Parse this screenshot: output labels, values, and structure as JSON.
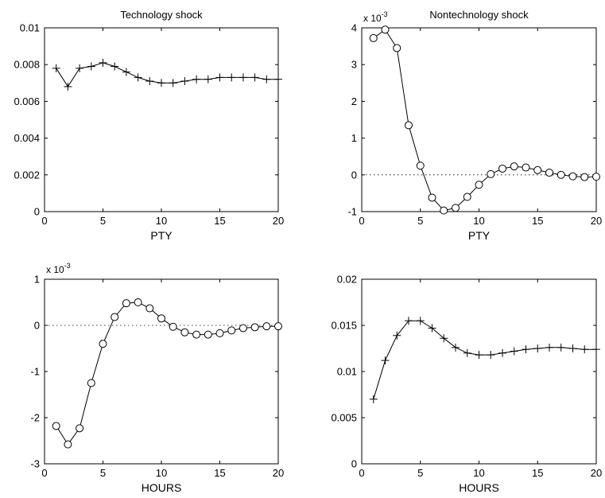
{
  "chart_data": [
    {
      "type": "line",
      "title": "Technology shock",
      "xlabel": "PTY",
      "ylabel": "",
      "multiplier": "",
      "xlim": [
        0,
        20
      ],
      "ylim": [
        0,
        0.01
      ],
      "xticks": [
        "0",
        "5",
        "10",
        "15",
        "20"
      ],
      "yticks": [
        "0",
        "0.002",
        "0.004",
        "0.006",
        "0.008",
        "0.01"
      ],
      "marker": "plus",
      "zero_line": false,
      "grid": false,
      "x": [
        1,
        2,
        3,
        4,
        5,
        6,
        7,
        8,
        9,
        10,
        11,
        12,
        13,
        14,
        15,
        16,
        17,
        18,
        19,
        20
      ],
      "values": [
        0.0078,
        0.0068,
        0.0078,
        0.0079,
        0.0081,
        0.0079,
        0.0076,
        0.0073,
        0.0071,
        0.007,
        0.007,
        0.0071,
        0.0072,
        0.0072,
        0.0073,
        0.0073,
        0.0073,
        0.0073,
        0.0072,
        0.0072
      ]
    },
    {
      "type": "line",
      "title": "Nontechnology shock",
      "xlabel": "PTY",
      "ylabel": "",
      "multiplier": "x 10",
      "multiplier_exp": "-3",
      "xlim": [
        0,
        20
      ],
      "ylim": [
        -1,
        4
      ],
      "xticks": [
        "0",
        "5",
        "10",
        "15",
        "20"
      ],
      "yticks": [
        "-1",
        "0",
        "1",
        "2",
        "3",
        "4"
      ],
      "marker": "circle",
      "zero_line": true,
      "grid": false,
      "x": [
        1,
        2,
        3,
        4,
        5,
        6,
        7,
        8,
        9,
        10,
        11,
        12,
        13,
        14,
        15,
        16,
        17,
        18,
        19,
        20
      ],
      "values": [
        3.72,
        3.95,
        3.45,
        1.35,
        0.25,
        -0.62,
        -0.97,
        -0.9,
        -0.6,
        -0.27,
        0.02,
        0.17,
        0.23,
        0.2,
        0.13,
        0.06,
        0.0,
        -0.04,
        -0.06,
        -0.05
      ]
    },
    {
      "type": "line",
      "title": "",
      "xlabel": "HOURS",
      "ylabel": "",
      "multiplier": "x 10",
      "multiplier_exp": "-3",
      "xlim": [
        0,
        20
      ],
      "ylim": [
        -3,
        1
      ],
      "xticks": [
        "0",
        "5",
        "10",
        "15",
        "20"
      ],
      "yticks": [
        "-3",
        "-2",
        "-1",
        "0",
        "1"
      ],
      "marker": "circle",
      "zero_line": true,
      "grid": false,
      "x": [
        1,
        2,
        3,
        4,
        5,
        6,
        7,
        8,
        9,
        10,
        11,
        12,
        13,
        14,
        15,
        16,
        17,
        18,
        19,
        20
      ],
      "values": [
        -2.18,
        -2.58,
        -2.23,
        -1.25,
        -0.4,
        0.18,
        0.48,
        0.5,
        0.37,
        0.15,
        -0.03,
        -0.15,
        -0.2,
        -0.2,
        -0.17,
        -0.11,
        -0.06,
        -0.04,
        -0.02,
        -0.02
      ]
    },
    {
      "type": "line",
      "title": "",
      "xlabel": "HOURS",
      "ylabel": "",
      "multiplier": "",
      "xlim": [
        0,
        20
      ],
      "ylim": [
        0,
        0.02
      ],
      "xticks": [
        "0",
        "5",
        "10",
        "15",
        "20"
      ],
      "yticks": [
        "0",
        "0.005",
        "0.01",
        "0.015",
        "0.02"
      ],
      "marker": "plus",
      "zero_line": false,
      "grid": false,
      "x": [
        1,
        2,
        3,
        4,
        5,
        6,
        7,
        8,
        9,
        10,
        11,
        12,
        13,
        14,
        15,
        16,
        17,
        18,
        19,
        20
      ],
      "values": [
        0.007,
        0.0112,
        0.0139,
        0.0155,
        0.0155,
        0.0147,
        0.0136,
        0.0126,
        0.012,
        0.0118,
        0.0118,
        0.012,
        0.0122,
        0.0124,
        0.0125,
        0.0126,
        0.0126,
        0.0125,
        0.0124,
        0.0124
      ]
    }
  ]
}
